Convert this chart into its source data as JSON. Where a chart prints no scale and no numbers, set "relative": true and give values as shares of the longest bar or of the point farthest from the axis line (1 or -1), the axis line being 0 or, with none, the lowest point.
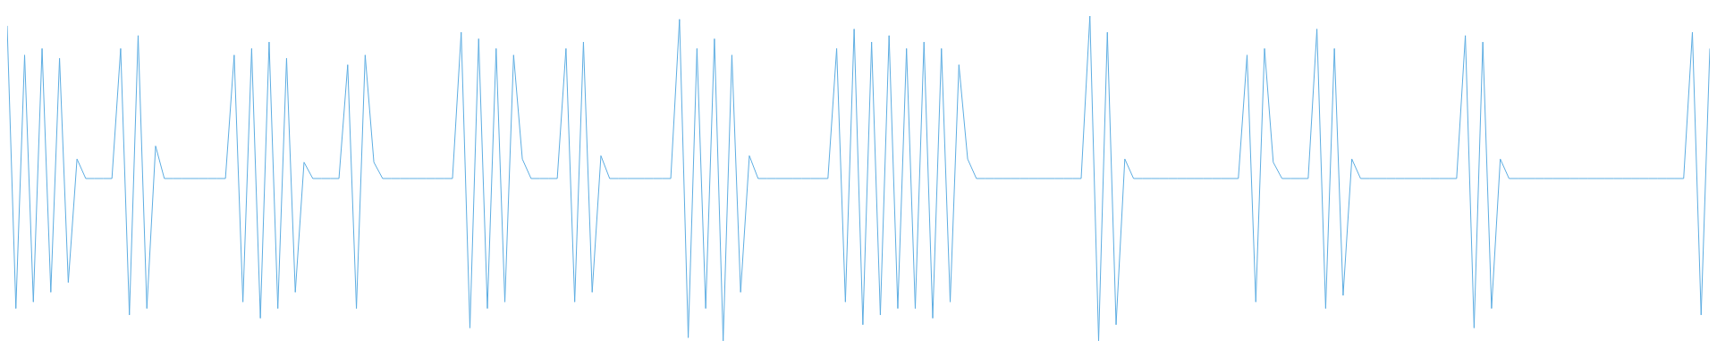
{
  "chart_data": {
    "type": "line",
    "relative": true,
    "categories": [
      null,
      null,
      null,
      null,
      null,
      null,
      null,
      null,
      null,
      null,
      null,
      null,
      null,
      null,
      null,
      null,
      null,
      null,
      null,
      null,
      null,
      null,
      null,
      null,
      null,
      null,
      null,
      null,
      null,
      null,
      null,
      null,
      null,
      null,
      null,
      null,
      null,
      null,
      null,
      null,
      null,
      null,
      null,
      null,
      null,
      null,
      null,
      null,
      null,
      null,
      null,
      null,
      null,
      null,
      null,
      null,
      null,
      null,
      null,
      null,
      null,
      null,
      null,
      null,
      null,
      null,
      null,
      null,
      null,
      null,
      null,
      null,
      null,
      null,
      null,
      null,
      null,
      null,
      null,
      null,
      null,
      null,
      null,
      null,
      null,
      null,
      null,
      null,
      null,
      null,
      null,
      null,
      null,
      null,
      null,
      null,
      null,
      null,
      null,
      null,
      null,
      null,
      null,
      null,
      null,
      null,
      null,
      null,
      null,
      null,
      null,
      null,
      null,
      null,
      null,
      null,
      null,
      null,
      null,
      null,
      null,
      null,
      null,
      null,
      null,
      null,
      null,
      null,
      null,
      null,
      null,
      null,
      null,
      null,
      null,
      null,
      null,
      null,
      null,
      null,
      null,
      null,
      null,
      null,
      null,
      null,
      null,
      null,
      null,
      null,
      null,
      null,
      null,
      null,
      null,
      null,
      null,
      null,
      null,
      null,
      null,
      null,
      null,
      null,
      null,
      null,
      null,
      null,
      null,
      null,
      null,
      null,
      null,
      null,
      null,
      null,
      null,
      null,
      null,
      null,
      null,
      null,
      null,
      null,
      null,
      null,
      null,
      null,
      null,
      null,
      null,
      null,
      null,
      null,
      null,
      null
    ],
    "series": [
      {
        "color": "#5dade2",
        "values": [
          0.97,
          0.1,
          0.88,
          0.12,
          0.9,
          0.15,
          0.87,
          0.18,
          0.56,
          0.5,
          0.5,
          0.5,
          0.5,
          0.9,
          0.08,
          0.94,
          0.1,
          0.6,
          0.5,
          0.5,
          0.5,
          0.5,
          0.5,
          0.5,
          0.5,
          0.5,
          0.88,
          0.12,
          0.9,
          0.07,
          0.92,
          0.1,
          0.87,
          0.15,
          0.55,
          0.5,
          0.5,
          0.5,
          0.5,
          0.85,
          0.1,
          0.88,
          0.55,
          0.5,
          0.5,
          0.5,
          0.5,
          0.5,
          0.5,
          0.5,
          0.5,
          0.5,
          0.95,
          0.04,
          0.93,
          0.1,
          0.9,
          0.12,
          0.88,
          0.56,
          0.5,
          0.5,
          0.5,
          0.5,
          0.9,
          0.12,
          0.92,
          0.15,
          0.57,
          0.5,
          0.5,
          0.5,
          0.5,
          0.5,
          0.5,
          0.5,
          0.5,
          0.99,
          0.01,
          0.9,
          0.1,
          0.93,
          0.0,
          0.88,
          0.15,
          0.57,
          0.5,
          0.5,
          0.5,
          0.5,
          0.5,
          0.5,
          0.5,
          0.5,
          0.5,
          0.9,
          0.12,
          0.96,
          0.05,
          0.92,
          0.08,
          0.94,
          0.1,
          0.9,
          0.1,
          0.92,
          0.07,
          0.9,
          0.12,
          0.85,
          0.56,
          0.5,
          0.5,
          0.5,
          0.5,
          0.5,
          0.5,
          0.5,
          0.5,
          0.5,
          0.5,
          0.5,
          0.5,
          0.5,
          1.0,
          0.0,
          0.95,
          0.05,
          0.56,
          0.5,
          0.5,
          0.5,
          0.5,
          0.5,
          0.5,
          0.5,
          0.5,
          0.5,
          0.5,
          0.5,
          0.5,
          0.5,
          0.88,
          0.12,
          0.9,
          0.55,
          0.5,
          0.5,
          0.5,
          0.5,
          0.96,
          0.1,
          0.9,
          0.14,
          0.56,
          0.5,
          0.5,
          0.5,
          0.5,
          0.5,
          0.5,
          0.5,
          0.5,
          0.5,
          0.5,
          0.5,
          0.5,
          0.94,
          0.04,
          0.92,
          0.1,
          0.56,
          0.5,
          0.5,
          0.5,
          0.5,
          0.5,
          0.5,
          0.5,
          0.5,
          0.5,
          0.5,
          0.5,
          0.5,
          0.5,
          0.5,
          0.5,
          0.5,
          0.5,
          0.5,
          0.5,
          0.5,
          0.5,
          0.95,
          0.08,
          0.9
        ]
      }
    ]
  }
}
